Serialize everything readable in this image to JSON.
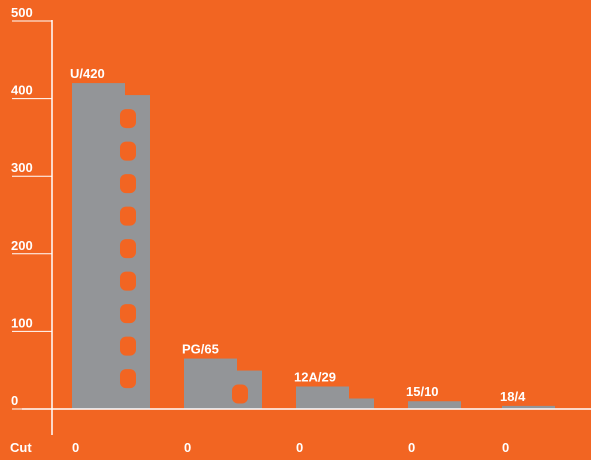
{
  "colors": {
    "background": "#F26522",
    "bar": "#939598",
    "text": "#FFFFFF",
    "axis": "#FFFFFF"
  },
  "chart_data": {
    "type": "bar",
    "title": "",
    "xlabel": "",
    "ylabel": "",
    "ylim": [
      0,
      500
    ],
    "yticks": [
      0,
      100,
      200,
      300,
      400,
      500
    ],
    "grid": false,
    "categories": [
      "U",
      "PG",
      "12A",
      "15",
      "18"
    ],
    "values": [
      420,
      65,
      29,
      10,
      4
    ],
    "data_labels": [
      "U/420",
      "PG/65",
      "12A/29",
      "15/10",
      "18/4"
    ],
    "cut_row_label": "Cut",
    "cut_values": [
      "0",
      "0",
      "0",
      "0",
      "0"
    ]
  }
}
